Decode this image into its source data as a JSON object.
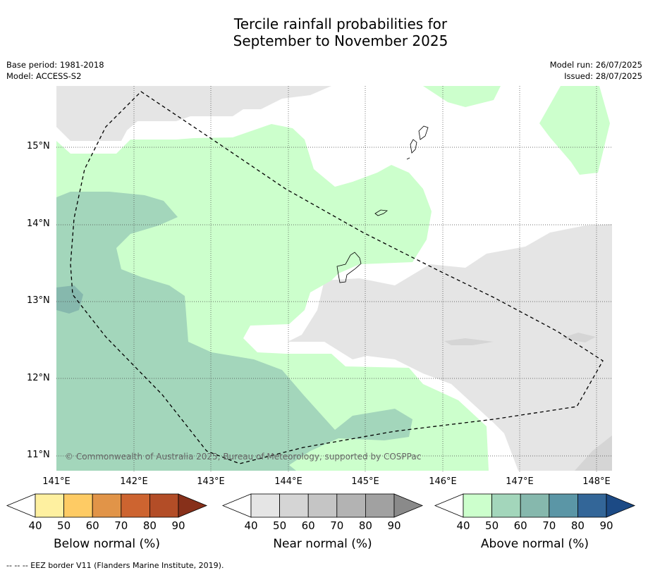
{
  "title_line1": "Tercile rainfall probabilities for",
  "title_line2": "September to November 2025",
  "base_period": "Base period: 1981-2018",
  "model": "Model: ACCESS-S2",
  "model_run": "Model run: 26/07/2025",
  "issued": "Issued: 28/07/2025",
  "copyright": "© Commonwealth of Australia 2025, Bureau of Meteorology, supported by COSPPac",
  "lat_labels": [
    "15°N",
    "14°N",
    "13°N",
    "12°N",
    "11°N"
  ],
  "lon_labels": [
    "141°E",
    "142°E",
    "143°E",
    "144°E",
    "145°E",
    "146°E",
    "147°E",
    "148°E"
  ],
  "colorbars": [
    {
      "label": "Below normal (%)",
      "ticks": [
        "40",
        "50",
        "60",
        "70",
        "80",
        "90"
      ],
      "colors": [
        "#ffffff",
        "#fef0a0",
        "#fecb64",
        "#e19448",
        "#cd6430",
        "#b34d27",
        "#87301a"
      ]
    },
    {
      "label": "Near normal (%)",
      "ticks": [
        "40",
        "50",
        "60",
        "70",
        "80",
        "90"
      ],
      "colors": [
        "#ffffff",
        "#e5e5e5",
        "#d5d5d5",
        "#c5c5c5",
        "#b3b3b3",
        "#a1a1a1",
        "#8a8a8a"
      ]
    },
    {
      "label": "Above normal (%)",
      "ticks": [
        "40",
        "50",
        "60",
        "70",
        "80",
        "90"
      ],
      "colors": [
        "#ffffff",
        "#ccffcc",
        "#a3d6bb",
        "#86b8ad",
        "#5b96a6",
        "#336698",
        "#1c4a85"
      ]
    }
  ],
  "footer": "--  --  -- EEZ border V11 (Flanders Marine Institute, 2019)."
}
